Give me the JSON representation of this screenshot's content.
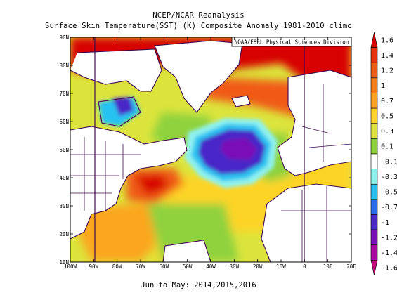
{
  "title": {
    "line1": "NCEP/NCAR Reanalysis",
    "line2": "Surface Skin Temperature(SST) (K) Composite Anomaly 1981-2010 climo"
  },
  "subtitle": "Jun to May: 2014,2015,2016",
  "credit": "NOAA/ESRL Physical Sciences Division",
  "axes": {
    "lon_labels": [
      "100W",
      "90W",
      "80W",
      "70W",
      "60W",
      "50W",
      "40W",
      "30W",
      "20W",
      "10W",
      "0",
      "10E",
      "20E"
    ],
    "lat_labels": [
      "10N",
      "20N",
      "30N",
      "40N",
      "50N",
      "60N",
      "70N",
      "80N",
      "90N"
    ]
  },
  "colorbar": {
    "labels": [
      "1.6",
      "1.4",
      "1.2",
      "1",
      "0.7",
      "0.5",
      "0.3",
      "0.1",
      "-0.1",
      "-0.3",
      "-0.5",
      "-0.7",
      "-1",
      "-1.2",
      "-1.4",
      "-1.6"
    ],
    "colors": [
      "#d80000",
      "#e83010",
      "#f05a14",
      "#f57f1a",
      "#fba61e",
      "#fdd427",
      "#dce43c",
      "#8fd23c",
      "#ffffff",
      "#8ff2ef",
      "#28c2f0",
      "#2a6cf0",
      "#4a28c8",
      "#7a10b8",
      "#a8089c",
      "#c40a78"
    ]
  },
  "field_colors": {
    "land": "#ffffff",
    "coast": "#3d0a4d",
    "strong_warm": "#d80000",
    "warm": "#f05a14",
    "mid_warm": "#fba61e",
    "mild_warm": "#fdd427",
    "slight_warm": "#dce43c",
    "neutral_green": "#8fd23c",
    "cool": "#8ff2ef",
    "cold": "#28c2f0",
    "very_cold": "#4a28c8",
    "extreme_cold": "#7a10b8"
  }
}
